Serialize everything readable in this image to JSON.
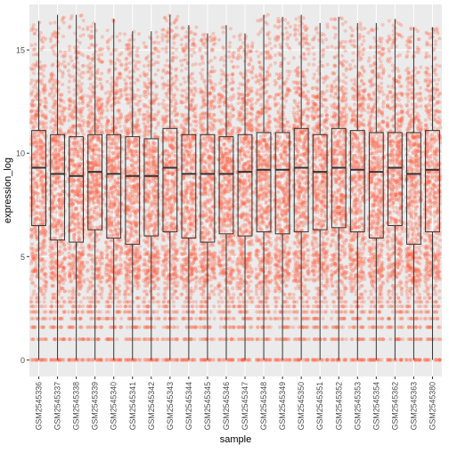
{
  "chart_data": {
    "type": "box",
    "title": "",
    "xlabel": "sample",
    "ylabel": "expression_log",
    "ylim": [
      -0.8,
      17.2
    ],
    "yticks": [
      0,
      5,
      10,
      15
    ],
    "grid": true,
    "legend": "none",
    "colors": {
      "points": "#FF6347",
      "panel": "#EBEBEB",
      "gridline": "#FFFFFF",
      "box_stroke": "#333333",
      "tick_text": "#4D4D4D",
      "axis_title": "#000000"
    },
    "categories": [
      "GSM2545336",
      "GSM2545337",
      "GSM2545338",
      "GSM2545339",
      "GSM2545340",
      "GSM2545341",
      "GSM2545342",
      "GSM2545343",
      "GSM2545344",
      "GSM2545345",
      "GSM2545346",
      "GSM2545347",
      "GSM2545348",
      "GSM2545349",
      "GSM2545350",
      "GSM2545351",
      "GSM2545352",
      "GSM2545353",
      "GSM2545354",
      "GSM2545362",
      "GSM2545363",
      "GSM2545380"
    ],
    "boxes": [
      {
        "q1": 6.5,
        "median": 9.3,
        "q3": 11.1,
        "min": 0,
        "max": 16.4
      },
      {
        "q1": 5.8,
        "median": 9.0,
        "q3": 10.9,
        "min": 0,
        "max": 16.7
      },
      {
        "q1": 5.7,
        "median": 8.9,
        "q3": 10.8,
        "min": 0,
        "max": 16.7
      },
      {
        "q1": 6.3,
        "median": 9.1,
        "q3": 10.9,
        "min": 0,
        "max": 16.3
      },
      {
        "q1": 5.9,
        "median": 9.0,
        "q3": 10.9,
        "min": 0,
        "max": 16.5
      },
      {
        "q1": 5.6,
        "median": 8.9,
        "q3": 10.8,
        "min": 0,
        "max": 15.9
      },
      {
        "q1": 6.0,
        "median": 8.9,
        "q3": 10.7,
        "min": 0,
        "max": 15.9
      },
      {
        "q1": 6.2,
        "median": 9.3,
        "q3": 11.2,
        "min": 0,
        "max": 16.7
      },
      {
        "q1": 5.9,
        "median": 9.0,
        "q3": 10.9,
        "min": 0,
        "max": 16.2
      },
      {
        "q1": 5.7,
        "median": 9.0,
        "q3": 10.9,
        "min": 0,
        "max": 15.8
      },
      {
        "q1": 6.1,
        "median": 9.0,
        "q3": 10.8,
        "min": 0,
        "max": 16.2
      },
      {
        "q1": 6.0,
        "median": 9.1,
        "q3": 10.9,
        "min": 0,
        "max": 15.8
      },
      {
        "q1": 6.2,
        "median": 9.2,
        "q3": 11.0,
        "min": 0,
        "max": 16.7
      },
      {
        "q1": 6.1,
        "median": 9.2,
        "q3": 11.0,
        "min": 0,
        "max": 16.6
      },
      {
        "q1": 6.2,
        "median": 9.3,
        "q3": 11.2,
        "min": 0,
        "max": 16.7
      },
      {
        "q1": 6.3,
        "median": 9.1,
        "q3": 10.9,
        "min": 0,
        "max": 16.3
      },
      {
        "q1": 6.4,
        "median": 9.3,
        "q3": 11.2,
        "min": 0,
        "max": 16.6
      },
      {
        "q1": 6.2,
        "median": 9.2,
        "q3": 11.1,
        "min": 0,
        "max": 16.3
      },
      {
        "q1": 5.9,
        "median": 9.1,
        "q3": 11.0,
        "min": 0,
        "max": 16.3
      },
      {
        "q1": 6.5,
        "median": 9.3,
        "q3": 11.0,
        "min": 0,
        "max": 16.5
      },
      {
        "q1": 5.6,
        "median": 9.0,
        "q3": 11.0,
        "min": 0,
        "max": 16.1
      },
      {
        "q1": 6.2,
        "median": 9.2,
        "q3": 11.1,
        "min": 0,
        "max": 16.1
      }
    ]
  }
}
